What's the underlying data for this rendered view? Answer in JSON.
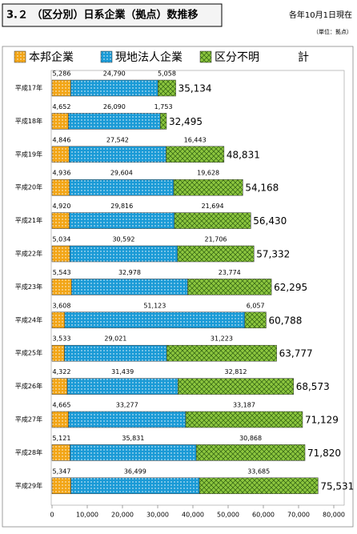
{
  "chart_data": {
    "type": "stacked-barh",
    "title": "3.２ （区分別）日系企業（拠点）数推移",
    "subtitle": "各年10月1日現在",
    "unit": "（単位：拠点）",
    "categories": [
      "平成17年",
      "平成18年",
      "平成19年",
      "平成20年",
      "平成21年",
      "平成22年",
      "平成23年",
      "平成24年",
      "平成25年",
      "平成26年",
      "平成27年",
      "平成28年",
      "平成29年"
    ],
    "series": [
      {
        "name": "本邦企業",
        "color": "#f2a516",
        "pattern": "dots",
        "values": [
          5286,
          4652,
          4846,
          4936,
          4920,
          5034,
          5543,
          3608,
          3533,
          4322,
          4665,
          5121,
          5347
        ],
        "value_labels": [
          "5,286",
          "4,652",
          "4,846",
          "4,936",
          "4,920",
          "5,034",
          "5,543",
          "3,608",
          "3,533",
          "4,322",
          "4,665",
          "5,121",
          "5,347"
        ]
      },
      {
        "name": "現地法人企業",
        "color": "#1a9ad6",
        "pattern": "dots",
        "values": [
          24790,
          26090,
          27542,
          29604,
          29816,
          30592,
          32978,
          51123,
          29021,
          31439,
          33277,
          35831,
          36499
        ],
        "value_labels": [
          "24,790",
          "26,090",
          "27,542",
          "29,604",
          "29,816",
          "30,592",
          "32,978",
          "51,123",
          "29,021",
          "31,439",
          "33,277",
          "35,831",
          "36,499"
        ]
      },
      {
        "name": "区分不明",
        "color": "#8cc63e",
        "pattern": "crosshatch",
        "values": [
          5058,
          1753,
          16443,
          19628,
          21694,
          21706,
          23774,
          6057,
          31223,
          32812,
          33187,
          30868,
          33685
        ],
        "value_labels": [
          "5,058",
          "1,753",
          "16,443",
          "19,628",
          "21,694",
          "21,706",
          "23,774",
          "6,057",
          "31,223",
          "32,812",
          "33,187",
          "30,868",
          "33,685"
        ]
      }
    ],
    "totals": {
      "name": "計",
      "values": [
        35134,
        32495,
        48831,
        54168,
        56430,
        57332,
        62295,
        60788,
        63777,
        68573,
        71129,
        71820,
        75531
      ],
      "value_labels": [
        "35,134",
        "32,495",
        "48,831",
        "54,168",
        "56,430",
        "57,332",
        "62,295",
        "60,788",
        "63,777",
        "68,573",
        "71,129",
        "71,820",
        "75,531"
      ]
    },
    "xlim": [
      0,
      80000
    ],
    "xticks": [
      0,
      {
        "value": 10000,
        "label": "10,000"
      },
      {
        "value": 20000,
        "label": "20,000"
      },
      {
        "value": 30000,
        "label": "30,000"
      },
      {
        "value": 40000,
        "label": "40,000"
      },
      {
        "value": 50000,
        "label": "50,000"
      },
      {
        "value": 60000,
        "label": "60,000"
      },
      {
        "value": 70000,
        "label": "70,000"
      },
      {
        "value": 80000,
        "label": "80,000"
      }
    ],
    "grid": false
  }
}
